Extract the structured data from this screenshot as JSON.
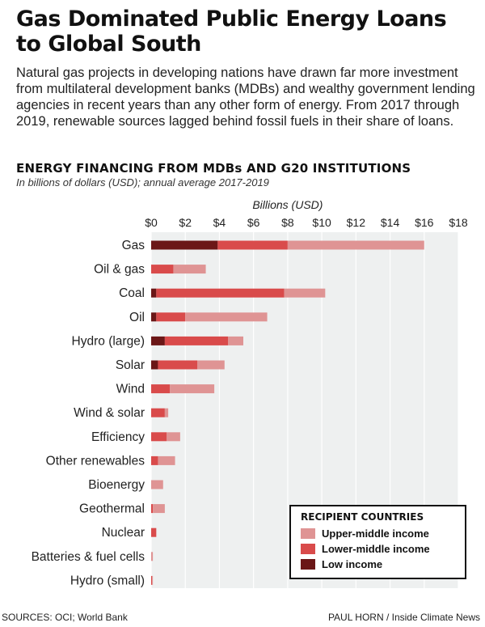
{
  "header": {
    "title": "Gas Dominated Public Energy Loans to Global South",
    "intro": "Natural gas projects in developing nations have drawn far more investment from multilateral development banks (MDBs) and wealthy government lending agencies in recent years than any other form of energy. From 2017 through 2019, renewable sources lagged behind fossil fuels in their share of loans."
  },
  "chart_data": {
    "type": "bar",
    "orientation": "horizontal",
    "stacked": true,
    "title": "ENERGY FINANCING FROM MDBs AND G20 INSTITUTIONS",
    "subtitle": "In billions of dollars (USD); annual average 2017-2019",
    "xlabel": "Billions (USD)",
    "ylabel": "",
    "xlim": [
      0,
      18
    ],
    "x_ticks": [
      0,
      2,
      4,
      6,
      8,
      10,
      12,
      14,
      16,
      18
    ],
    "x_tick_labels": [
      "$0",
      "$2",
      "$4",
      "$6",
      "$8",
      "$10",
      "$12",
      "$14",
      "$16",
      "$18"
    ],
    "x_axis_position": "top",
    "grid": true,
    "categories": [
      "Gas",
      "Oil & gas",
      "Coal",
      "Oil",
      "Hydro (large)",
      "Solar",
      "Wind",
      "Wind & solar",
      "Efficiency",
      "Other renewables",
      "Bioenergy",
      "Geothermal",
      "Nuclear",
      "Batteries & fuel cells",
      "Hydro (small)"
    ],
    "series": [
      {
        "name": "Low income",
        "color": "#6b1717",
        "values": [
          3.9,
          0,
          0.3,
          0.3,
          0.8,
          0.4,
          0,
          0,
          0,
          0,
          0,
          0,
          0,
          0,
          0
        ]
      },
      {
        "name": "Lower-middle income",
        "color": "#d94b4b",
        "values": [
          4.1,
          1.3,
          7.5,
          1.7,
          3.7,
          2.3,
          1.1,
          0.8,
          0.9,
          0.4,
          0,
          0.1,
          0.3,
          0,
          0.05
        ]
      },
      {
        "name": "Upper-middle income",
        "color": "#df9494",
        "values": [
          8.0,
          1.9,
          2.4,
          4.8,
          0.9,
          1.6,
          2.6,
          0.2,
          0.8,
          1.0,
          0.7,
          0.7,
          0,
          0.1,
          0.05
        ]
      }
    ],
    "legend": {
      "title": "RECIPIENT COUNTRIES",
      "position": "bottom-right",
      "order": [
        "Upper-middle income",
        "Lower-middle income",
        "Low income"
      ]
    }
  },
  "footer": {
    "sources": "SOURCES: OCI; World Bank",
    "credit": "PAUL HORN / Inside Climate News"
  }
}
